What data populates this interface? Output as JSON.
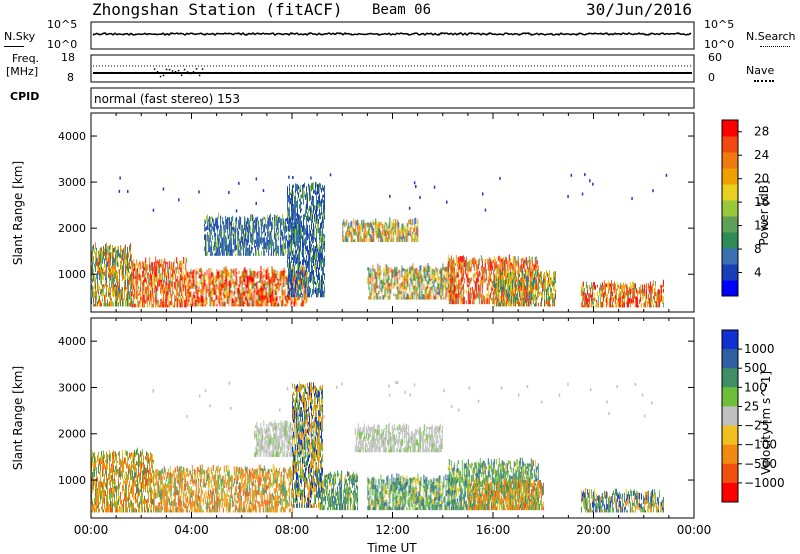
{
  "header": {
    "station": "Zhongshan Station (fitACF)",
    "beam": "Beam 06",
    "date": "30/Jun/2016"
  },
  "top_panels": {
    "nsky_label": "N.Sky",
    "nsearch_label": "N.Search",
    "freq_label_line1": "Freq.",
    "freq_label_line2": "[MHz]",
    "nave_label": "Nave",
    "cpid_label": "CPID",
    "cpid_text": "normal (fast stereo) 153",
    "noise_ticks_left": [
      "10^5",
      "10^0"
    ],
    "noise_ticks_right": [
      "10^5",
      "10^0"
    ],
    "freq_ticks_left": [
      "18",
      "8"
    ],
    "freq_ticks_right": [
      "60",
      "0"
    ]
  },
  "chart_data": [
    {
      "type": "heatmap",
      "panel": "power",
      "xlabel": "",
      "ylabel": "Slant Range [km]",
      "xlim": [
        0,
        24
      ],
      "ylim": [
        180,
        4500
      ],
      "yticks": [
        "1000",
        "2000",
        "3000",
        "4000"
      ],
      "colorbar": {
        "label": "Power [dB]",
        "tick_labels": [
          "4",
          "8",
          "12",
          "16",
          "20",
          "24",
          "28"
        ],
        "range": [
          0,
          30
        ],
        "colors": [
          "#0000ff",
          "#1a3db8",
          "#3a6fb0",
          "#2e8b57",
          "#5fa058",
          "#9ac83b",
          "#e8d020",
          "#f0a000",
          "#f07a10",
          "#f04a10",
          "#ff0000"
        ]
      },
      "regions": [
        {
          "t": [
            0.0,
            1.6
          ],
          "r": [
            300,
            1550
          ],
          "level": "mixed"
        },
        {
          "t": [
            1.6,
            3.8
          ],
          "r": [
            280,
            1250
          ],
          "level": "high"
        },
        {
          "t": [
            3.8,
            8.6
          ],
          "r": [
            300,
            1050
          ],
          "level": "high"
        },
        {
          "t": [
            4.5,
            8.3
          ],
          "r": [
            1400,
            2200
          ],
          "level": "low"
        },
        {
          "t": [
            7.8,
            9.3
          ],
          "r": [
            500,
            2900
          ],
          "level": "low"
        },
        {
          "t": [
            10.0,
            13.0
          ],
          "r": [
            1700,
            2100
          ],
          "level": "mixed"
        },
        {
          "t": [
            11.0,
            14.5
          ],
          "r": [
            450,
            1100
          ],
          "level": "mixed"
        },
        {
          "t": [
            14.2,
            17.8
          ],
          "r": [
            350,
            1300
          ],
          "level": "high"
        },
        {
          "t": [
            16.0,
            18.5
          ],
          "r": [
            300,
            1000
          ],
          "level": "mixed"
        },
        {
          "t": [
            19.5,
            22.8
          ],
          "r": [
            280,
            750
          ],
          "level": "high"
        }
      ]
    },
    {
      "type": "heatmap",
      "panel": "velocity",
      "xlabel": "Time UT",
      "ylabel": "Slant Range [km]",
      "xlim": [
        0,
        24
      ],
      "ylim": [
        180,
        4500
      ],
      "xticks": [
        "00:00",
        "04:00",
        "08:00",
        "12:00",
        "16:00",
        "20:00",
        "00:00"
      ],
      "yticks": [
        "1000",
        "2000",
        "3000",
        "4000"
      ],
      "colorbar": {
        "label": "Velocity [m s^-1]",
        "tick_labels": [
          "1000",
          "500",
          "100",
          "25",
          "−25",
          "−100",
          "−500",
          "−1000"
        ],
        "colors": [
          "#1030d0",
          "#2f5fa0",
          "#3e8f66",
          "#6fbe3a",
          "#c0c0c0",
          "#f0c020",
          "#f08a10",
          "#f05010",
          "#ff0000"
        ]
      },
      "regions": [
        {
          "t": [
            0.0,
            2.5
          ],
          "r": [
            300,
            1550
          ],
          "level": "neg"
        },
        {
          "t": [
            2.5,
            8.0
          ],
          "r": [
            300,
            1200
          ],
          "level": "neg"
        },
        {
          "t": [
            6.5,
            9.0
          ],
          "r": [
            1500,
            2200
          ],
          "level": "grey"
        },
        {
          "t": [
            8.0,
            9.2
          ],
          "r": [
            400,
            3000
          ],
          "level": "mixedneg"
        },
        {
          "t": [
            9.0,
            10.6
          ],
          "r": [
            350,
            1100
          ],
          "level": "pos"
        },
        {
          "t": [
            10.5,
            14.0
          ],
          "r": [
            1600,
            2100
          ],
          "level": "grey"
        },
        {
          "t": [
            11.0,
            14.5
          ],
          "r": [
            350,
            1000
          ],
          "level": "pos"
        },
        {
          "t": [
            14.2,
            17.8
          ],
          "r": [
            350,
            1350
          ],
          "level": "pos"
        },
        {
          "t": [
            15.0,
            18.0
          ],
          "r": [
            350,
            950
          ],
          "level": "neg"
        },
        {
          "t": [
            19.5,
            22.8
          ],
          "r": [
            300,
            700
          ],
          "level": "mixedneg"
        }
      ]
    }
  ]
}
